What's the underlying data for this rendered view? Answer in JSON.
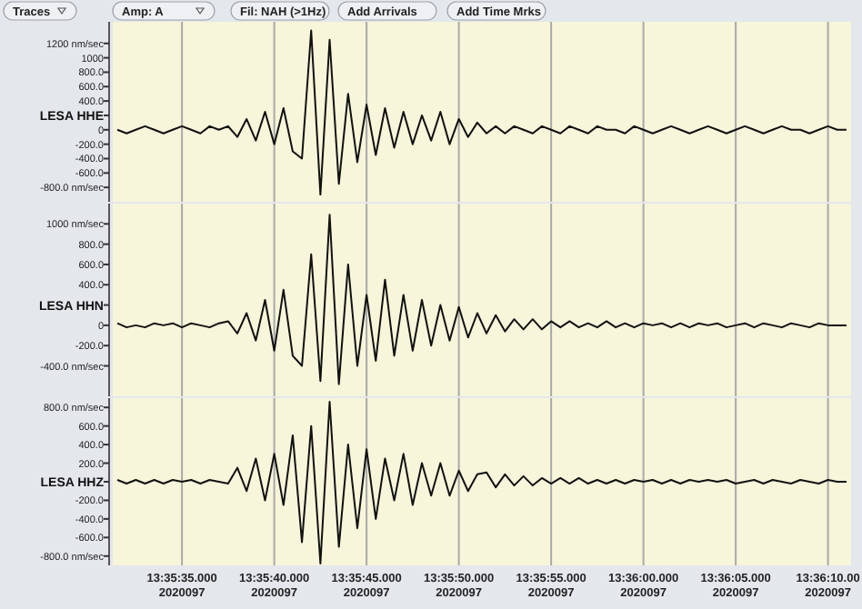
{
  "chart_data": [
    {
      "type": "other",
      "annotations": [
        "Traces",
        "Amp: A",
        "Fil: NAH (>1Hz)",
        "Add Arrivals",
        "Add Time Mrks"
      ]
    },
    {
      "type": "line",
      "ylabel": "LESA HHE",
      "categories": [
        null,
        null,
        null,
        null,
        null,
        null,
        null,
        null,
        null,
        null,
        null,
        null,
        null,
        null,
        null,
        null,
        null,
        null,
        null,
        null,
        null,
        null,
        null,
        null,
        null,
        null,
        null,
        null,
        null,
        null,
        null,
        null,
        null,
        null,
        null,
        null,
        null,
        null,
        null,
        null,
        null,
        null,
        null,
        null,
        null,
        null,
        null,
        null,
        null,
        null,
        null,
        null,
        null,
        null,
        null,
        null,
        null,
        null,
        null,
        null,
        null,
        null,
        null,
        null,
        null,
        null,
        null,
        null,
        null,
        null,
        null,
        null,
        null,
        null,
        null,
        null,
        null,
        null,
        null,
        null
      ],
      "ylim": [
        -1000,
        1500
      ],
      "yticks": [
        {
          "value": 1200,
          "label": "1200 nm/sec"
        },
        {
          "value": 1000,
          "label": "1000"
        },
        {
          "value": 800,
          "label": "800.0"
        },
        {
          "value": 600,
          "label": "600.0"
        },
        {
          "value": 400,
          "label": "400.0"
        },
        {
          "value": 200,
          "label": null
        },
        {
          "value": 0,
          "label": "0"
        },
        {
          "value": -200,
          "label": "-200.0"
        },
        {
          "value": -400,
          "label": "-400.0"
        },
        {
          "value": -600,
          "label": "-600.0"
        },
        {
          "value": -800,
          "label": "-800.0 nm/sec"
        }
      ],
      "grid": "x",
      "tick_labels": "y",
      "series": [
        {
          "color": "#111111",
          "values": [
            0,
            -50,
            0,
            50,
            0,
            -50,
            0,
            50,
            0,
            -50,
            50,
            0,
            50,
            -100,
            150,
            -150,
            250,
            -200,
            300,
            -300,
            -400,
            1380,
            -900,
            1250,
            -750,
            500,
            -450,
            350,
            -350,
            300,
            -250,
            250,
            -200,
            200,
            -150,
            250,
            -200,
            150,
            -100,
            100,
            -50,
            50,
            -50,
            50,
            0,
            -50,
            50,
            0,
            -50,
            50,
            0,
            -50,
            50,
            0,
            0,
            -50,
            50,
            0,
            -50,
            0,
            50,
            0,
            -50,
            0,
            50,
            0,
            -50,
            0,
            50,
            0,
            -50,
            0,
            50,
            0,
            0,
            -50,
            0,
            50,
            0,
            0
          ]
        }
      ]
    },
    {
      "type": "line",
      "ylabel": "LESA HHN",
      "categories": [
        null,
        null,
        null,
        null,
        null,
        null,
        null,
        null,
        null,
        null,
        null,
        null,
        null,
        null,
        null,
        null,
        null,
        null,
        null,
        null,
        null,
        null,
        null,
        null,
        null,
        null,
        null,
        null,
        null,
        null,
        null,
        null,
        null,
        null,
        null,
        null,
        null,
        null,
        null,
        null,
        null,
        null,
        null,
        null,
        null,
        null,
        null,
        null,
        null,
        null,
        null,
        null,
        null,
        null,
        null,
        null,
        null,
        null,
        null,
        null,
        null,
        null,
        null,
        null,
        null,
        null,
        null,
        null,
        null,
        null,
        null,
        null,
        null,
        null,
        null,
        null,
        null,
        null,
        null,
        null
      ],
      "ylim": [
        -700,
        1200
      ],
      "yticks": [
        {
          "value": 1000,
          "label": "1000 nm/sec"
        },
        {
          "value": 800,
          "label": "800.0"
        },
        {
          "value": 600,
          "label": "600.0"
        },
        {
          "value": 400,
          "label": "400.0"
        },
        {
          "value": 200,
          "label": null
        },
        {
          "value": 0,
          "label": "0"
        },
        {
          "value": -200,
          "label": "-200.0"
        },
        {
          "value": -400,
          "label": "-400.0 nm/sec"
        }
      ],
      "grid": "x",
      "tick_labels": "y",
      "series": [
        {
          "color": "#111111",
          "values": [
            20,
            -20,
            0,
            -20,
            20,
            0,
            20,
            -20,
            20,
            0,
            -20,
            20,
            40,
            -80,
            120,
            -150,
            250,
            -250,
            350,
            -300,
            -400,
            700,
            -550,
            1090,
            -580,
            600,
            -400,
            300,
            -350,
            450,
            -300,
            300,
            -250,
            250,
            -200,
            200,
            -150,
            180,
            -120,
            120,
            -80,
            100,
            -60,
            60,
            -40,
            60,
            -40,
            40,
            -20,
            40,
            -20,
            20,
            -20,
            40,
            -20,
            20,
            -20,
            20,
            0,
            20,
            -20,
            20,
            -20,
            20,
            0,
            20,
            -20,
            0,
            20,
            -20,
            20,
            0,
            -20,
            20,
            0,
            -20,
            20,
            0,
            0,
            0
          ]
        }
      ]
    },
    {
      "type": "line",
      "ylabel": "LESA HHZ",
      "categories": [
        null,
        null,
        null,
        null,
        null,
        null,
        null,
        "13:35:35.000",
        null,
        null,
        null,
        null,
        null,
        null,
        null,
        null,
        null,
        "13:35:40.000",
        null,
        null,
        null,
        null,
        null,
        null,
        null,
        null,
        null,
        "13:35:45.000",
        null,
        null,
        null,
        null,
        null,
        null,
        null,
        null,
        null,
        "13:35:50.000",
        null,
        null,
        null,
        null,
        null,
        null,
        null,
        null,
        null,
        "13:35:55.000",
        null,
        null,
        null,
        null,
        null,
        null,
        null,
        null,
        null,
        "13:36:00.000",
        null,
        null,
        null,
        null,
        null,
        null,
        null,
        null,
        null,
        "13:36:05.000",
        null,
        null,
        null,
        null,
        null,
        null,
        null,
        null,
        null,
        "13:36:10.00",
        null,
        null
      ],
      "ylim": [
        -900,
        900
      ],
      "yticks": [
        {
          "value": 800,
          "label": "800.0 nm/sec"
        },
        {
          "value": 600,
          "label": "600.0"
        },
        {
          "value": 400,
          "label": "400.0"
        },
        {
          "value": 200,
          "label": "200.0"
        },
        {
          "value": 0,
          "label": null
        },
        {
          "value": -200,
          "label": "-200.0"
        },
        {
          "value": -400,
          "label": "-400.0"
        },
        {
          "value": -600,
          "label": "-600.0"
        },
        {
          "value": -800,
          "label": "-800.0 nm/sec"
        }
      ],
      "grid": "x",
      "annotations": [
        "2020097",
        "2020097",
        "2020097",
        "2020097",
        "2020097",
        "2020097",
        "2020097",
        "2020097"
      ],
      "series": [
        {
          "color": "#111111",
          "values": [
            20,
            -20,
            20,
            -20,
            20,
            -20,
            20,
            0,
            20,
            -20,
            20,
            0,
            -20,
            150,
            -100,
            250,
            -200,
            300,
            -250,
            500,
            -650,
            600,
            -880,
            860,
            -700,
            400,
            -500,
            350,
            -400,
            250,
            -200,
            300,
            -250,
            200,
            -150,
            200,
            -150,
            120,
            -100,
            80,
            100,
            -60,
            80,
            -40,
            60,
            -40,
            40,
            -20,
            40,
            -20,
            40,
            -20,
            20,
            -20,
            20,
            -20,
            20,
            0,
            20,
            -20,
            20,
            -20,
            20,
            0,
            20,
            0,
            20,
            -20,
            0,
            20,
            -20,
            20,
            0,
            -20,
            20,
            0,
            -20,
            20,
            0,
            0
          ]
        }
      ]
    }
  ]
}
